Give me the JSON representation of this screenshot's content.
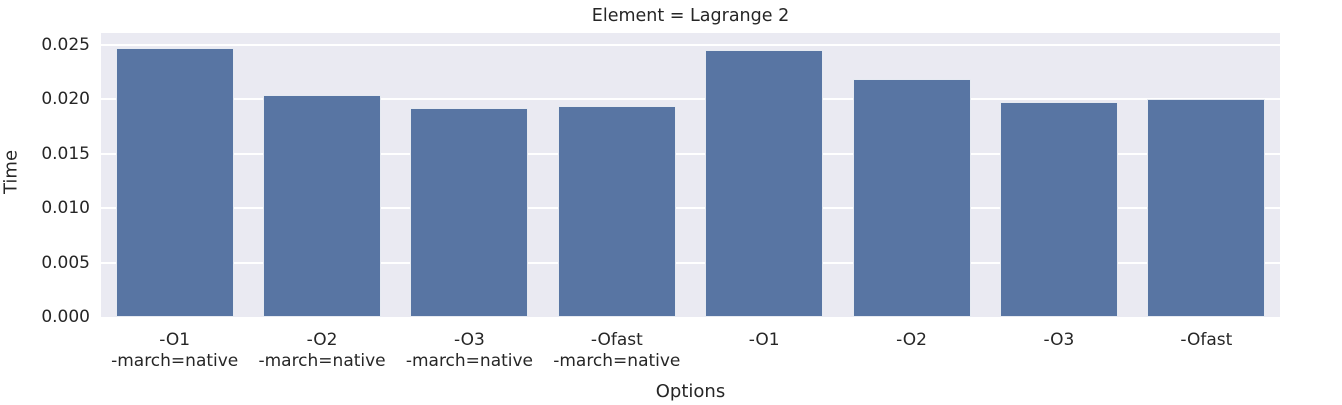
{
  "chart_data": {
    "type": "bar",
    "title": "Element = Lagrange 2",
    "xlabel": "Options",
    "ylabel": "Time",
    "categories": [
      "-O1\n-march=native",
      "-O2\n-march=native",
      "-O3\n-march=native",
      "-Ofast\n-march=native",
      "-O1",
      "-O2",
      "-O3",
      "-Ofast"
    ],
    "values": [
      0.0247,
      0.0204,
      0.0192,
      0.0194,
      0.0245,
      0.0219,
      0.0198,
      0.02
    ],
    "yticks": [
      0.0,
      0.005,
      0.01,
      0.015,
      0.02,
      0.025
    ],
    "ytick_labels": [
      "0.000",
      "0.005",
      "0.010",
      "0.015",
      "0.020",
      "0.025"
    ],
    "ylim": [
      0,
      0.0261
    ],
    "grid": true,
    "legend": null,
    "colors": {
      "bar_fill": "#5875A3",
      "plot_background": "#eaeaf2",
      "gridline": "#ffffff",
      "text": "#262626",
      "figure_background": "#ffffff"
    }
  }
}
